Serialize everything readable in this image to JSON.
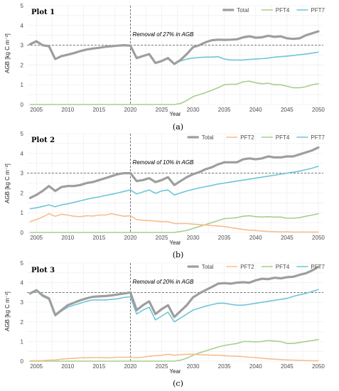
{
  "colors": {
    "Total": "#9e9e9e",
    "PFT2": "#f7bd8f",
    "PFT4": "#a7cf8c",
    "PFT7": "#6ec6d6"
  },
  "chart_data": [
    {
      "type": "line",
      "title": "Plot 1",
      "caption": "(a)",
      "xlabel": "Year",
      "ylabel": "AGB [kg C m⁻²]",
      "xlim": [
        2003.5,
        2050.8
      ],
      "ylim": [
        0,
        5
      ],
      "xticks": [
        2005,
        2010,
        2015,
        2020,
        2025,
        2030,
        2035,
        2040,
        2045,
        2050
      ],
      "yticks": [
        0,
        1,
        2,
        3,
        4,
        5
      ],
      "legend": "top-right",
      "annotation": {
        "text": "Removal of 27% in AGB",
        "x": 2020,
        "y": 3.45
      },
      "vline_x": 2020,
      "hline_y": 3.0,
      "x": [
        2004,
        2005,
        2006,
        2007,
        2008,
        2009,
        2010,
        2011,
        2012,
        2013,
        2014,
        2015,
        2016,
        2017,
        2018,
        2019,
        2020,
        2021,
        2022,
        2023,
        2024,
        2025,
        2026,
        2027,
        2028,
        2029,
        2030,
        2031,
        2032,
        2033,
        2034,
        2035,
        2036,
        2037,
        2038,
        2039,
        2040,
        2041,
        2042,
        2043,
        2044,
        2045,
        2046,
        2047,
        2048,
        2049,
        2050
      ],
      "series": [
        {
          "name": "Total",
          "values": [
            3.05,
            3.2,
            3.0,
            2.95,
            2.3,
            2.45,
            2.52,
            2.6,
            2.7,
            2.78,
            2.83,
            2.87,
            2.92,
            2.95,
            2.98,
            3.0,
            2.98,
            2.35,
            2.45,
            2.55,
            2.1,
            2.2,
            2.35,
            2.05,
            2.25,
            2.55,
            2.9,
            3.0,
            3.15,
            3.25,
            3.28,
            3.27,
            3.28,
            3.3,
            3.4,
            3.45,
            3.38,
            3.4,
            3.48,
            3.42,
            3.45,
            3.35,
            3.32,
            3.35,
            3.5,
            3.6,
            3.7
          ]
        },
        {
          "name": "PFT4",
          "values": [
            0,
            0,
            0,
            0,
            0,
            0,
            0,
            0,
            0,
            0,
            0,
            0,
            0,
            0,
            0,
            0,
            0,
            0,
            0,
            0,
            0,
            0,
            0,
            0,
            0.05,
            0.2,
            0.4,
            0.5,
            0.6,
            0.72,
            0.85,
            1.0,
            1.02,
            1.03,
            1.15,
            1.18,
            1.1,
            1.05,
            1.08,
            1.0,
            1.0,
            0.92,
            0.85,
            0.85,
            0.9,
            1.0,
            1.05
          ]
        },
        {
          "name": "PFT7",
          "values": [
            3.05,
            3.15,
            3.0,
            2.95,
            2.3,
            2.45,
            2.52,
            2.6,
            2.7,
            2.78,
            2.83,
            2.87,
            2.92,
            2.95,
            2.98,
            3.0,
            2.98,
            2.35,
            2.45,
            2.55,
            2.1,
            2.2,
            2.35,
            2.05,
            2.2,
            2.3,
            2.35,
            2.38,
            2.4,
            2.4,
            2.42,
            2.3,
            2.25,
            2.25,
            2.25,
            2.28,
            2.3,
            2.32,
            2.35,
            2.4,
            2.42,
            2.45,
            2.48,
            2.52,
            2.55,
            2.6,
            2.65
          ]
        }
      ]
    },
    {
      "type": "line",
      "title": "Plot 2",
      "caption": "(b)",
      "xlabel": "Year",
      "ylabel": "AGB [kg C m⁻²]",
      "xlim": [
        2003.5,
        2050.8
      ],
      "ylim": [
        0,
        5
      ],
      "xticks": [
        2005,
        2010,
        2015,
        2020,
        2025,
        2030,
        2035,
        2040,
        2045,
        2050
      ],
      "yticks": [
        0,
        1,
        2,
        3,
        4,
        5
      ],
      "legend": "top-right",
      "annotation": {
        "text": "Removal of 10% in AGB",
        "x": 2020,
        "y": 3.45
      },
      "vline_x": 2020,
      "hline_y": 3.0,
      "x": [
        2004,
        2005,
        2006,
        2007,
        2008,
        2009,
        2010,
        2011,
        2012,
        2013,
        2014,
        2015,
        2016,
        2017,
        2018,
        2019,
        2020,
        2021,
        2022,
        2023,
        2024,
        2025,
        2026,
        2027,
        2028,
        2029,
        2030,
        2031,
        2032,
        2033,
        2034,
        2035,
        2036,
        2037,
        2038,
        2039,
        2040,
        2041,
        2042,
        2043,
        2044,
        2045,
        2046,
        2047,
        2048,
        2049,
        2050
      ],
      "series": [
        {
          "name": "Total",
          "values": [
            1.75,
            1.9,
            2.1,
            2.35,
            2.1,
            2.3,
            2.35,
            2.35,
            2.4,
            2.5,
            2.55,
            2.65,
            2.75,
            2.85,
            2.95,
            3.0,
            3.0,
            2.6,
            2.65,
            2.75,
            2.55,
            2.65,
            2.8,
            2.4,
            2.6,
            2.8,
            2.95,
            3.05,
            3.2,
            3.3,
            3.45,
            3.55,
            3.55,
            3.55,
            3.7,
            3.75,
            3.7,
            3.75,
            3.85,
            3.8,
            3.8,
            3.85,
            3.85,
            3.95,
            4.05,
            4.15,
            4.3
          ]
        },
        {
          "name": "PFT2",
          "values": [
            0.55,
            0.65,
            0.78,
            0.95,
            0.82,
            0.92,
            0.88,
            0.82,
            0.8,
            0.85,
            0.83,
            0.88,
            0.88,
            0.95,
            0.88,
            0.82,
            0.85,
            0.65,
            0.62,
            0.6,
            0.58,
            0.55,
            0.55,
            0.45,
            0.45,
            0.45,
            0.42,
            0.4,
            0.38,
            0.35,
            0.33,
            0.3,
            0.25,
            0.2,
            0.15,
            0.12,
            0.1,
            0.07,
            0.05,
            0.04,
            0.03,
            0.03,
            0.02,
            0.02,
            0.02,
            0.02,
            0.02
          ]
        },
        {
          "name": "PFT4",
          "values": [
            0,
            0,
            0,
            0,
            0,
            0,
            0,
            0,
            0,
            0,
            0,
            0,
            0,
            0,
            0,
            0,
            0,
            0,
            0,
            0,
            0,
            0,
            0,
            0,
            0.05,
            0.1,
            0.2,
            0.3,
            0.4,
            0.5,
            0.6,
            0.7,
            0.72,
            0.75,
            0.82,
            0.85,
            0.8,
            0.78,
            0.8,
            0.78,
            0.78,
            0.72,
            0.72,
            0.75,
            0.82,
            0.88,
            0.95
          ]
        },
        {
          "name": "PFT7",
          "values": [
            1.2,
            1.25,
            1.32,
            1.4,
            1.3,
            1.4,
            1.45,
            1.52,
            1.6,
            1.68,
            1.75,
            1.8,
            1.87,
            1.93,
            2.0,
            2.08,
            2.15,
            1.95,
            2.05,
            2.15,
            1.98,
            2.1,
            2.15,
            1.9,
            2.0,
            2.1,
            2.18,
            2.25,
            2.32,
            2.38,
            2.45,
            2.5,
            2.55,
            2.6,
            2.65,
            2.7,
            2.75,
            2.8,
            2.85,
            2.9,
            2.95,
            3.0,
            3.05,
            3.1,
            3.18,
            3.25,
            3.35
          ]
        }
      ]
    },
    {
      "type": "line",
      "title": "Plot 3",
      "caption": "(c)",
      "xlabel": "Year",
      "ylabel": "AGB [kg C m⁻²]",
      "xlim": [
        2003.5,
        2050.8
      ],
      "ylim": [
        0,
        5
      ],
      "xticks": [
        2005,
        2010,
        2015,
        2020,
        2025,
        2030,
        2035,
        2040,
        2045,
        2050
      ],
      "yticks": [
        0,
        1,
        2,
        3,
        4,
        5
      ],
      "legend": "top-right",
      "annotation": {
        "text": "Removal of 20% in AGB",
        "x": 2020,
        "y": 3.95
      },
      "vline_x": 2020,
      "hline_y": 3.5,
      "x": [
        2004,
        2005,
        2006,
        2007,
        2008,
        2009,
        2010,
        2011,
        2012,
        2013,
        2014,
        2015,
        2016,
        2017,
        2018,
        2019,
        2020,
        2021,
        2022,
        2023,
        2024,
        2025,
        2026,
        2027,
        2028,
        2029,
        2030,
        2031,
        2032,
        2033,
        2034,
        2035,
        2036,
        2037,
        2038,
        2039,
        2040,
        2041,
        2042,
        2043,
        2044,
        2045,
        2046,
        2047,
        2048,
        2049,
        2050
      ],
      "series": [
        {
          "name": "Total",
          "values": [
            3.45,
            3.62,
            3.35,
            3.2,
            2.35,
            2.6,
            2.85,
            2.98,
            3.1,
            3.2,
            3.28,
            3.3,
            3.32,
            3.35,
            3.4,
            3.45,
            3.5,
            2.6,
            2.85,
            3.05,
            2.4,
            2.65,
            2.85,
            2.25,
            2.55,
            2.85,
            3.25,
            3.45,
            3.62,
            3.78,
            3.95,
            3.98,
            3.95,
            4.0,
            4.02,
            4.0,
            4.12,
            4.2,
            4.18,
            4.25,
            4.22,
            4.28,
            4.3,
            4.4,
            4.48,
            4.62,
            4.8
          ]
        },
        {
          "name": "PFT2",
          "values": [
            0.02,
            0.02,
            0.03,
            0.05,
            0.06,
            0.1,
            0.13,
            0.15,
            0.17,
            0.17,
            0.18,
            0.18,
            0.17,
            0.18,
            0.2,
            0.2,
            0.2,
            0.18,
            0.2,
            0.25,
            0.28,
            0.3,
            0.35,
            0.3,
            0.33,
            0.35,
            0.35,
            0.33,
            0.32,
            0.3,
            0.3,
            0.28,
            0.26,
            0.25,
            0.23,
            0.2,
            0.18,
            0.15,
            0.12,
            0.1,
            0.08,
            0.06,
            0.05,
            0.04,
            0.03,
            0.02,
            0.02
          ]
        },
        {
          "name": "PFT4",
          "values": [
            0,
            0,
            0,
            0,
            0,
            0,
            0,
            0,
            0,
            0,
            0,
            0,
            0,
            0,
            0,
            0,
            0,
            0,
            0,
            0,
            0,
            0,
            0,
            0,
            0.05,
            0.15,
            0.3,
            0.42,
            0.52,
            0.62,
            0.72,
            0.8,
            0.85,
            0.9,
            1.0,
            1.0,
            0.98,
            1.0,
            1.05,
            1.02,
            1.0,
            0.9,
            0.9,
            0.95,
            1.0,
            1.05,
            1.1
          ]
        },
        {
          "name": "PFT7",
          "values": [
            3.42,
            3.58,
            3.3,
            3.15,
            2.3,
            2.55,
            2.75,
            2.85,
            2.95,
            3.05,
            3.12,
            3.12,
            3.12,
            3.15,
            3.18,
            3.25,
            3.28,
            2.4,
            2.6,
            2.75,
            2.1,
            2.3,
            2.5,
            2.0,
            2.2,
            2.4,
            2.6,
            2.7,
            2.8,
            2.88,
            2.95,
            2.95,
            2.9,
            2.85,
            2.85,
            2.9,
            2.95,
            3.0,
            3.05,
            3.1,
            3.15,
            3.2,
            3.3,
            3.38,
            3.45,
            3.55,
            3.65
          ]
        }
      ]
    }
  ]
}
